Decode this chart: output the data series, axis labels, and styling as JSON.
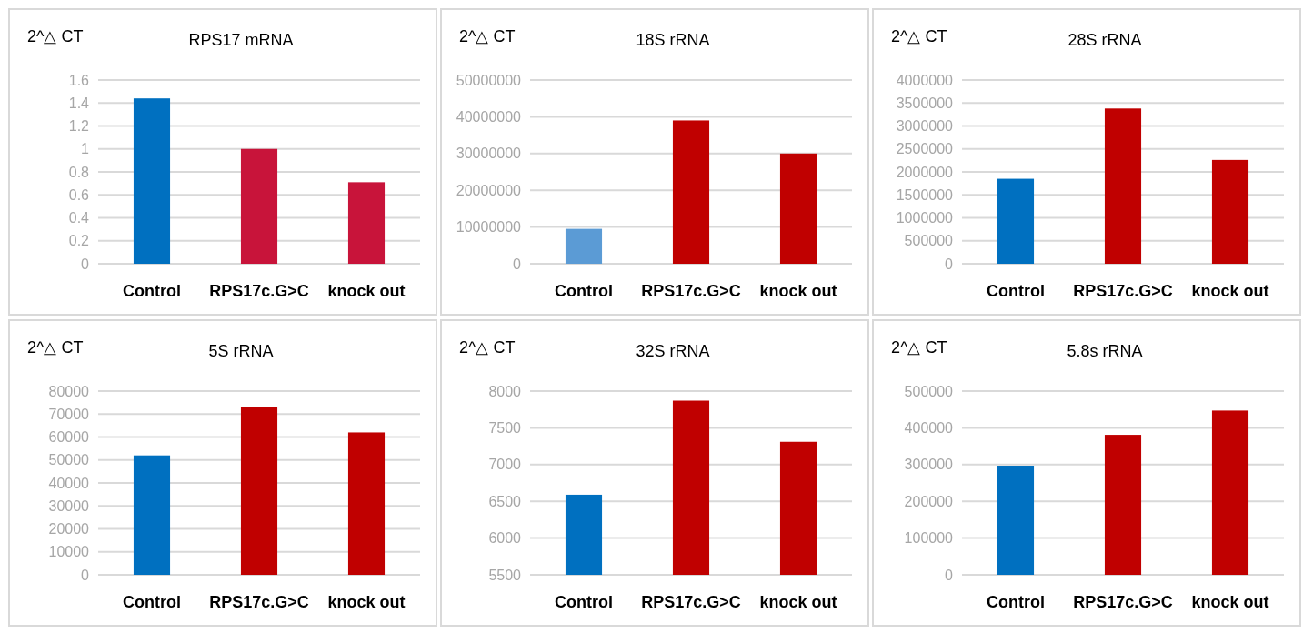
{
  "chart_data": [
    {
      "type": "bar",
      "title": "RPS17 mRNA",
      "ylabel": "2^△ CT",
      "categories": [
        "Control",
        "RPS17c.G>C",
        "knock out"
      ],
      "values": [
        1.44,
        1.0,
        0.71
      ],
      "colors": [
        "#0070c0",
        "#c8143a",
        "#c8143a"
      ],
      "ylim": [
        0,
        1.6
      ],
      "yticks": [
        0,
        {
          "value": 0.2,
          "label": "0.2"
        },
        {
          "value": 0.4,
          "label": "0.4"
        },
        {
          "value": 0.6,
          "label": "0.6"
        },
        {
          "value": 0.8,
          "label": "0.8"
        },
        1,
        {
          "value": 1.2,
          "label": "1.2"
        },
        {
          "value": 1.4,
          "label": "1.4"
        },
        {
          "value": 1.6,
          "label": "1.6"
        }
      ],
      "grid": "y"
    },
    {
      "type": "bar",
      "title": "18S rRNA",
      "ylabel": "2^△ CT",
      "categories": [
        "Control",
        "RPS17c.G>C",
        "knock out"
      ],
      "values": [
        9500000,
        39000000,
        30000000
      ],
      "colors": [
        "#5b9bd5",
        "#c00000",
        "#c00000"
      ],
      "ylim": [
        0,
        50000000
      ],
      "yticks": [
        0,
        10000000,
        20000000,
        30000000,
        40000000,
        50000000
      ],
      "grid": "y"
    },
    {
      "type": "bar",
      "title": "28S rRNA",
      "ylabel": "2^△ CT",
      "categories": [
        "Control",
        "RPS17c.G>C",
        "knock out"
      ],
      "values": [
        1850000,
        3380000,
        2260000
      ],
      "colors": [
        "#0070c0",
        "#c00000",
        "#c00000"
      ],
      "ylim": [
        0,
        4000000
      ],
      "yticks": [
        0,
        500000,
        1000000,
        1500000,
        2000000,
        2500000,
        3000000,
        3500000,
        4000000
      ],
      "grid": "y"
    },
    {
      "type": "bar",
      "title": "5S rRNA",
      "ylabel": "2^△ CT",
      "categories": [
        "Control",
        "RPS17c.G>C",
        "knock out"
      ],
      "values": [
        52000,
        73000,
        62000
      ],
      "colors": [
        "#0070c0",
        "#c00000",
        "#c00000"
      ],
      "ylim": [
        0,
        80000
      ],
      "yticks": [
        0,
        10000,
        20000,
        30000,
        40000,
        50000,
        60000,
        70000,
        80000
      ],
      "grid": "y"
    },
    {
      "type": "bar",
      "title": "32S rRNA",
      "ylabel": "2^△ CT",
      "categories": [
        "Control",
        "RPS17c.G>C",
        "knock out"
      ],
      "values": [
        6590,
        7870,
        7310
      ],
      "colors": [
        "#0070c0",
        "#c00000",
        "#c00000"
      ],
      "ylim": [
        5500,
        8000
      ],
      "yticks": [
        5500,
        6000,
        6500,
        7000,
        7500,
        8000
      ],
      "grid": "y"
    },
    {
      "type": "bar",
      "title": "5.8s rRNA",
      "ylabel": "2^△ CT",
      "categories": [
        "Control",
        "RPS17c.G>C",
        "knock out"
      ],
      "values": [
        297000,
        381000,
        447000
      ],
      "colors": [
        "#0070c0",
        "#c00000",
        "#c00000"
      ],
      "ylim": [
        0,
        500000
      ],
      "yticks": [
        0,
        100000,
        200000,
        300000,
        400000,
        500000
      ],
      "grid": "y"
    }
  ]
}
